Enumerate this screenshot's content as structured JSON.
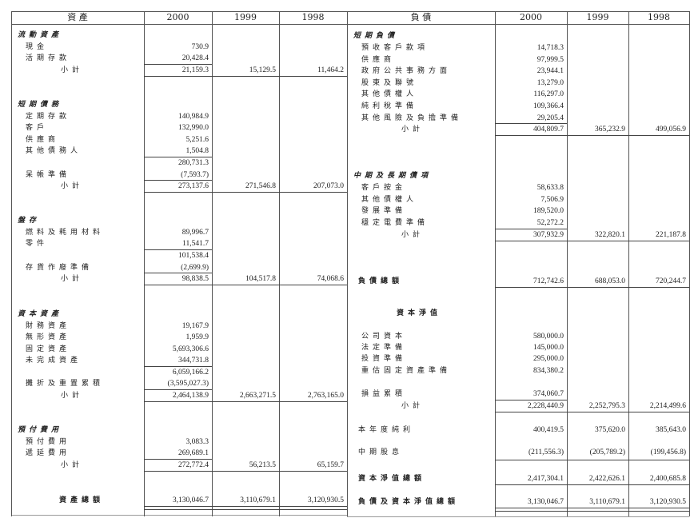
{
  "assets": {
    "header": {
      "title": "資 產",
      "y2000": "2000",
      "y1999": "1999",
      "y1998": "1998"
    },
    "rows": [
      {
        "type": "heading",
        "label": "流動資產"
      },
      {
        "type": "item",
        "label": "現金",
        "v2000": "730.9"
      },
      {
        "type": "item",
        "label": "活期存款",
        "v2000": "20,428.4"
      },
      {
        "type": "subtotal",
        "label": "小計",
        "v2000": "21,159.3",
        "v1999": "15,129.5",
        "v1998": "11,464.2"
      },
      {
        "type": "heading",
        "label": "短期債務"
      },
      {
        "type": "item",
        "label": "定期存款",
        "v2000": "140,984.9"
      },
      {
        "type": "item",
        "label": "客戶",
        "v2000": "132,990.0"
      },
      {
        "type": "item",
        "label": "供應商",
        "v2000": "5,251.6"
      },
      {
        "type": "item",
        "label": "其他債務人",
        "v2000": "1,504.8"
      },
      {
        "type": "sum",
        "label": "",
        "v2000": "280,731.3"
      },
      {
        "type": "item",
        "label": "呆帳準備",
        "v2000": "(7,593.7)"
      },
      {
        "type": "subtotal",
        "label": "小計",
        "v2000": "273,137.6",
        "v1999": "271,546.8",
        "v1998": "207,073.0"
      },
      {
        "type": "heading",
        "label": "盤存"
      },
      {
        "type": "item",
        "label": "燃料及耗用材料",
        "v2000": "89,996.7"
      },
      {
        "type": "item",
        "label": "零件",
        "v2000": "11,541.7"
      },
      {
        "type": "sum",
        "label": "",
        "v2000": "101,538.4"
      },
      {
        "type": "item",
        "label": "存貨作廢準備",
        "v2000": "(2,699.9)"
      },
      {
        "type": "subtotal",
        "label": "小計",
        "v2000": "98,838.5",
        "v1999": "104,517.8",
        "v1998": "74,068.6"
      },
      {
        "type": "heading",
        "label": "資本資產"
      },
      {
        "type": "item",
        "label": "財務資產",
        "v2000": "19,167.9"
      },
      {
        "type": "item",
        "label": "無形資產",
        "v2000": "1,959.9"
      },
      {
        "type": "item",
        "label": "固定資產",
        "v2000": "5,693,306.6"
      },
      {
        "type": "item",
        "label": "未完成資產",
        "v2000": "344,731.8"
      },
      {
        "type": "sum",
        "label": "",
        "v2000": "6,059,166.2"
      },
      {
        "type": "item",
        "label": "攤折及重置累積",
        "v2000": "(3,595,027.3)"
      },
      {
        "type": "subtotal",
        "label": "小計",
        "v2000": "2,464,138.9",
        "v1999": "2,663,271.5",
        "v1998": "2,763,165.0"
      },
      {
        "type": "heading",
        "label": "預付費用"
      },
      {
        "type": "item",
        "label": "預付費用",
        "v2000": "3,083.3"
      },
      {
        "type": "item",
        "label": "遞延費用",
        "v2000": "269,689.1"
      },
      {
        "type": "subtotal",
        "label": "小計",
        "v2000": "272,772.4",
        "v1999": "56,213.5",
        "v1998": "65,159.7"
      },
      {
        "type": "total",
        "label": "資產總額",
        "v2000": "3,130,046.7",
        "v1999": "3,110,679.1",
        "v1998": "3,120,930.5"
      }
    ]
  },
  "liabilities": {
    "header": {
      "title": "負 債",
      "y2000": "2000",
      "y1999": "1999",
      "y1998": "1998"
    },
    "rows": [
      {
        "type": "heading",
        "label": "短期負債"
      },
      {
        "type": "item",
        "label": "預收客戶款項",
        "v2000": "14,718.3"
      },
      {
        "type": "item",
        "label": "供應商",
        "v2000": "97,999.5"
      },
      {
        "type": "item",
        "label": "政府公共事務方面",
        "v2000": "23,944.1"
      },
      {
        "type": "item",
        "label": "股東及聯號",
        "v2000": "13,279.0"
      },
      {
        "type": "item",
        "label": "其他債權人",
        "v2000": "116,297.0"
      },
      {
        "type": "item",
        "label": "純利稅準備",
        "v2000": "109,366.4"
      },
      {
        "type": "item",
        "label": "其他風險及負擔準備",
        "v2000": "29,205.4"
      },
      {
        "type": "subtotal",
        "label": "小計",
        "v2000": "404,809.7",
        "v1999": "365,232.9",
        "v1998": "499,056.9"
      },
      {
        "type": "heading",
        "label": "中期及長期債項"
      },
      {
        "type": "item",
        "label": "客戶按金",
        "v2000": "58,633.8"
      },
      {
        "type": "item",
        "label": "其他債權人",
        "v2000": "7,506.9"
      },
      {
        "type": "item",
        "label": "發展準備",
        "v2000": "189,520.0"
      },
      {
        "type": "item",
        "label": "穩定電費準備",
        "v2000": "52,272.2"
      },
      {
        "type": "subtotal",
        "label": "小計",
        "v2000": "307,932.9",
        "v1999": "322,820.1",
        "v1998": "221,187.8"
      },
      {
        "type": "boldrow",
        "label": "負債總額",
        "v2000": "712,742.6",
        "v1999": "688,053.0",
        "v1998": "720,244.7"
      },
      {
        "type": "centerhead",
        "label": "資本淨值"
      },
      {
        "type": "item",
        "label": "公司資本",
        "v2000": "580,000.0"
      },
      {
        "type": "item",
        "label": "法定準備",
        "v2000": "145,000.0"
      },
      {
        "type": "item",
        "label": "投資準備",
        "v2000": "295,000.0"
      },
      {
        "type": "item",
        "label": "重估固定資產準備",
        "v2000": "834,380.2"
      },
      {
        "type": "item",
        "label": "損益累積",
        "v2000": "374,060.7"
      },
      {
        "type": "subtotal",
        "label": "小計",
        "v2000": "2,228,440.9",
        "v1999": "2,252,795.3",
        "v1998": "2,214,499.6"
      },
      {
        "type": "plain",
        "label": "本年度純利",
        "v2000": "400,419.5",
        "v1999": "375,620.0",
        "v1998": "385,643.0"
      },
      {
        "type": "plain",
        "label": "中期股息",
        "v2000": "(211,556.3)",
        "v1999": "(205,789.2)",
        "v1998": "(199,456.8)"
      },
      {
        "type": "boldrow",
        "label": "資本淨值總額",
        "v2000": "2,417,304.1",
        "v1999": "2,422,626.1",
        "v1998": "2,400,685.8"
      },
      {
        "type": "total",
        "label": "負債及資本淨值總額",
        "v2000": "3,130,046.7",
        "v1999": "3,110,679.1",
        "v1998": "3,120,930.5"
      }
    ]
  }
}
